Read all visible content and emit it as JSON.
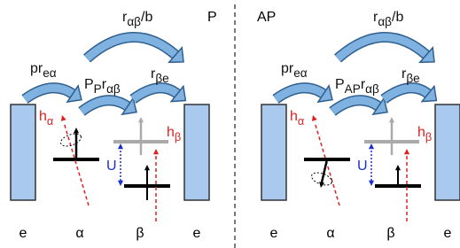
{
  "panels": [
    {
      "mode": "P",
      "rate_top": {
        "text": "r",
        "sub": "αβ",
        "suffix": "/b"
      },
      "rate_in": {
        "text": "pr",
        "sub": "eα"
      },
      "rate_mid": {
        "text": "P",
        "sub": "P",
        "text2": "r",
        "sub2": "αβ"
      },
      "rate_out": {
        "text": "r",
        "sub": "βe"
      },
      "field_a": {
        "text": "h",
        "sub": "α"
      },
      "field_b": {
        "text": "h",
        "sub": "β"
      },
      "gap": "U",
      "sites": [
        "e",
        "α",
        "β",
        "e"
      ]
    },
    {
      "mode": "AP",
      "rate_top": {
        "text": "r",
        "sub": "αβ",
        "suffix": "/b"
      },
      "rate_in": {
        "text": "pr",
        "sub": "eα"
      },
      "rate_mid": {
        "text": "P",
        "sub": "AP",
        "text2": "r",
        "sub2": "αβ"
      },
      "rate_out": {
        "text": "r",
        "sub": "βe"
      },
      "field_a": {
        "text": "h",
        "sub": "α"
      },
      "field_b": {
        "text": "h",
        "sub": "β"
      },
      "gap": "U",
      "sites": [
        "e",
        "α",
        "β",
        "e"
      ]
    }
  ]
}
